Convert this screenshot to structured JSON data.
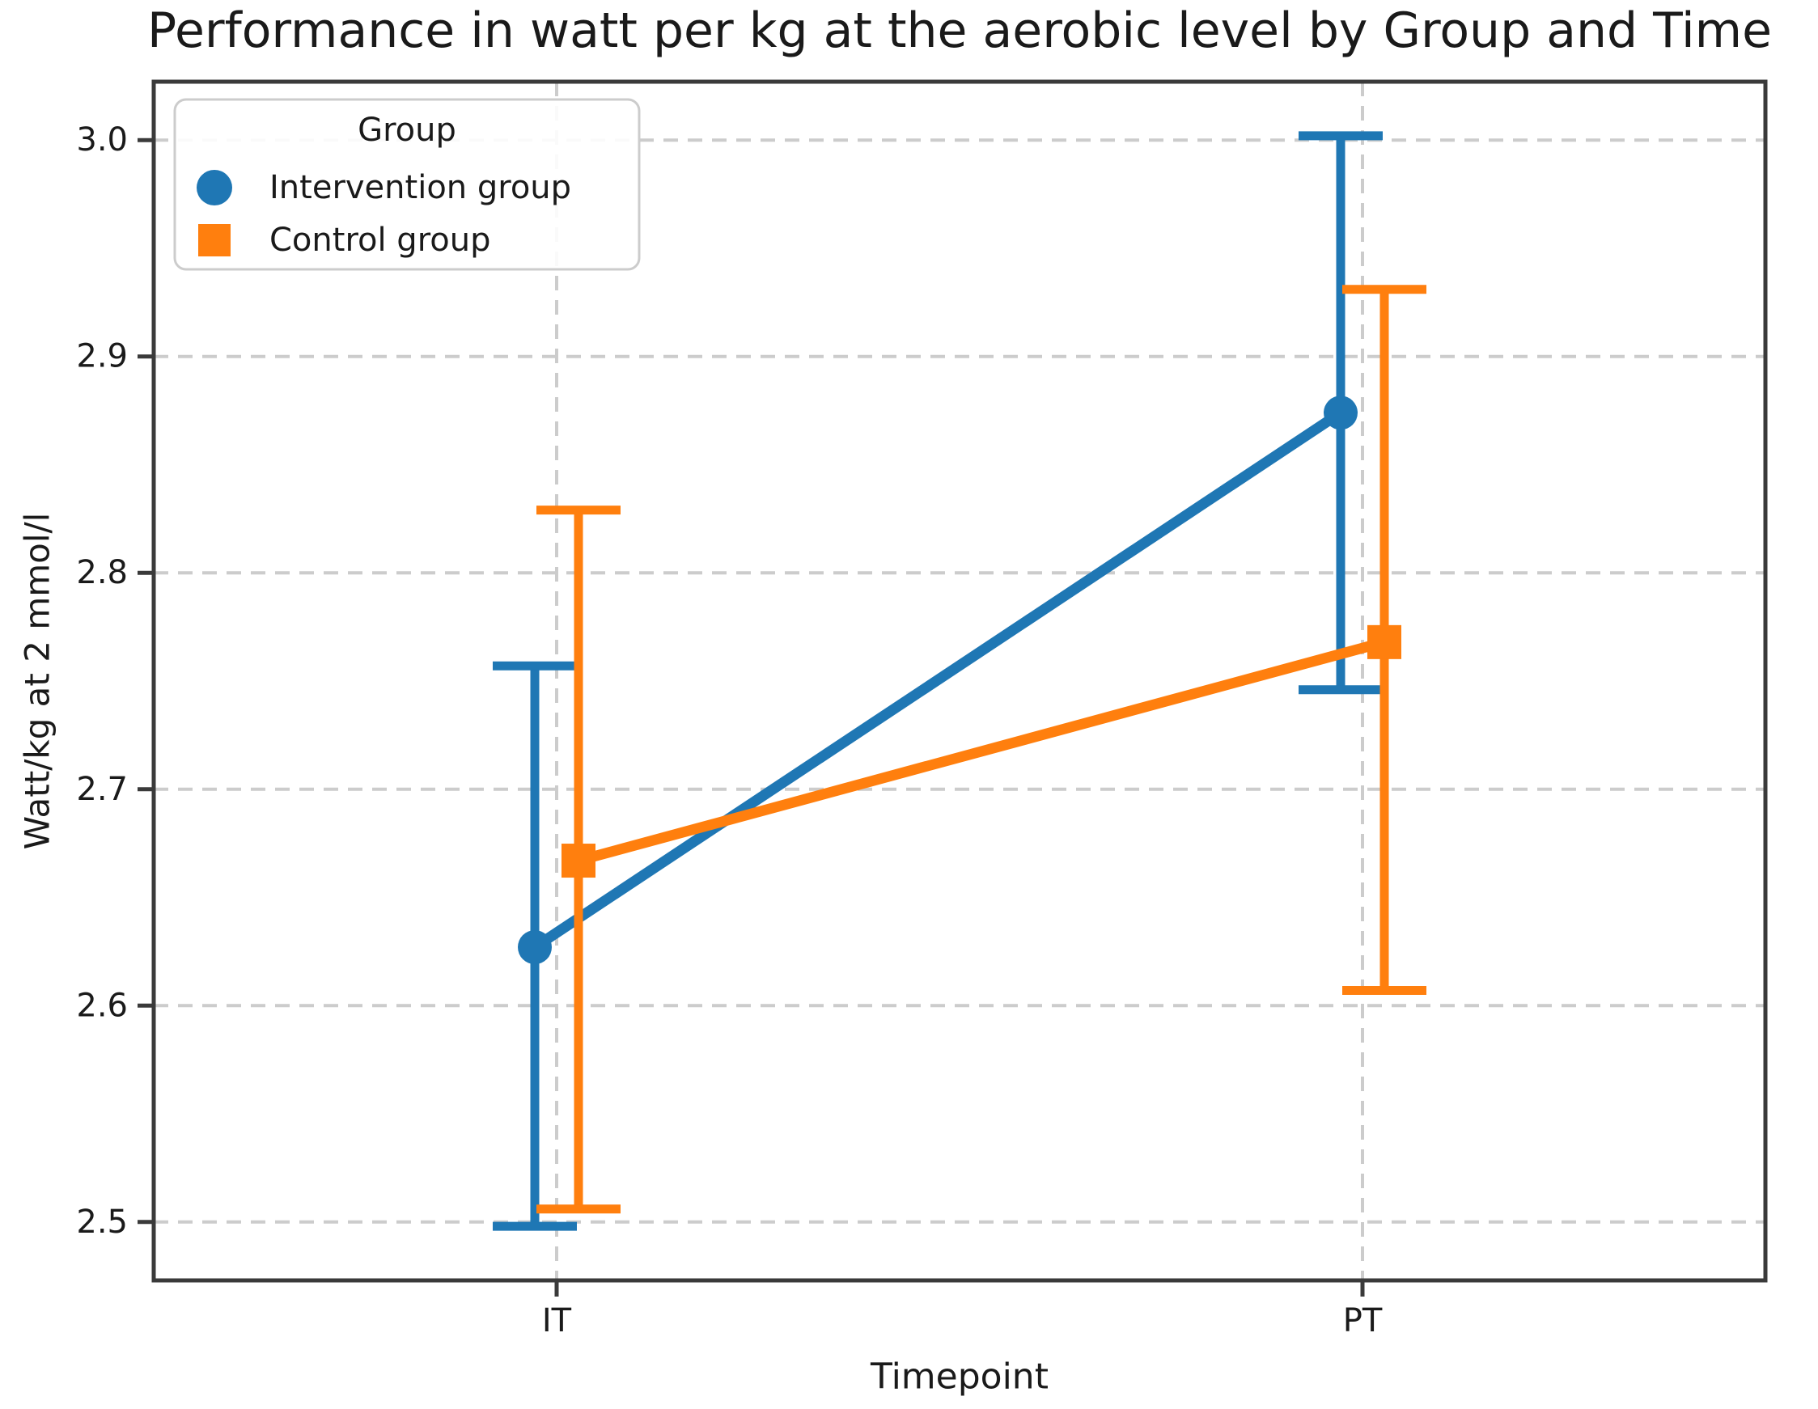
{
  "chart_data": {
    "type": "line",
    "title": "Performance in watt per kg at the aerobic level by Group and Time",
    "xlabel": "Timepoint",
    "ylabel": "Watt/kg at 2 mmol/l",
    "categories": [
      "IT",
      "PT"
    ],
    "series": [
      {
        "name": "Intervention group",
        "marker": "circle",
        "color": "#1f77b4",
        "values": [
          2.627,
          2.874
        ],
        "ci_low": [
          2.498,
          2.746
        ],
        "ci_high": [
          2.757,
          3.002
        ]
      },
      {
        "name": "Control group",
        "marker": "square",
        "color": "#ff7f0e",
        "values": [
          2.667,
          2.768
        ],
        "ci_low": [
          2.506,
          2.607
        ],
        "ci_high": [
          2.829,
          2.931
        ]
      }
    ],
    "ylim": [
      2.473,
      3.027
    ],
    "yticks": [
      2.5,
      2.6,
      2.7,
      2.8,
      2.9,
      3.0
    ],
    "ytick_labels": [
      "2.5",
      "2.6",
      "2.7",
      "2.8",
      "2.9",
      "3.0"
    ],
    "grid": true,
    "legend": {
      "title": "Group",
      "position": "upper-left"
    },
    "colors": {
      "grid": "#cccccc",
      "spine": "#3a3a3a",
      "text": "#1a1a1a",
      "background": "#ffffff",
      "legend_border": "#cccccc"
    }
  }
}
